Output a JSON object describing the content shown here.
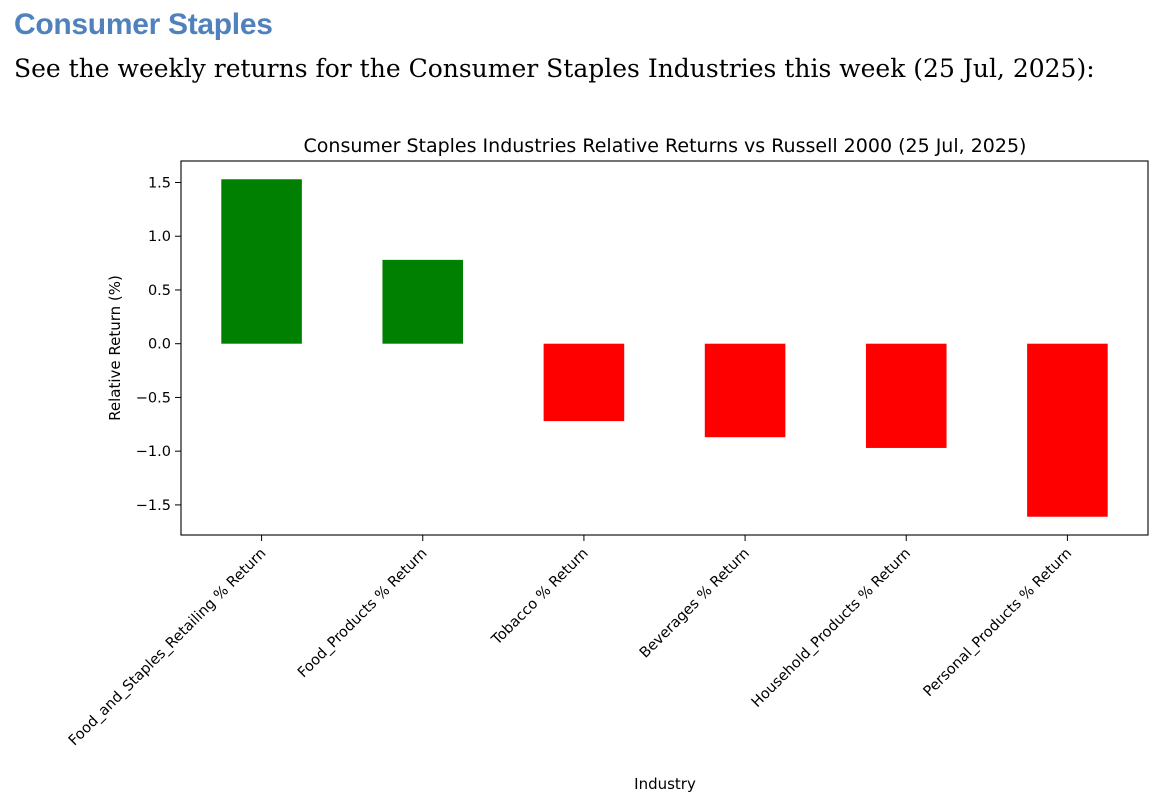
{
  "document": {
    "heading": "Consumer Staples",
    "intro": "See the weekly returns for the Consumer Staples Industries this week (25 Jul, 2025):"
  },
  "chart_data": {
    "type": "bar",
    "title": "Consumer Staples Industries Relative Returns vs Russell 2000 (25 Jul, 2025)",
    "xlabel": "Industry",
    "ylabel": "Relative Return (%)",
    "categories": [
      "Food_and_Staples_Retailing % Return",
      "Food_Products % Return",
      "Tobacco % Return",
      "Beverages % Return",
      "Household_Products % Return",
      "Personal_Products % Return"
    ],
    "values": [
      1.53,
      0.78,
      -0.72,
      -0.87,
      -0.97,
      -1.61
    ],
    "ylim": [
      -1.78,
      1.7
    ],
    "yticks": [
      -1.5,
      -1.0,
      -0.5,
      0.0,
      0.5,
      1.0,
      1.5
    ],
    "ytick_labels": [
      "−1.5",
      "−1.0",
      "−0.5",
      "0.0",
      "0.5",
      "1.0",
      "1.5"
    ],
    "positive_color": "#008000",
    "negative_color": "#ff0000",
    "grid": false,
    "legend": "none"
  }
}
